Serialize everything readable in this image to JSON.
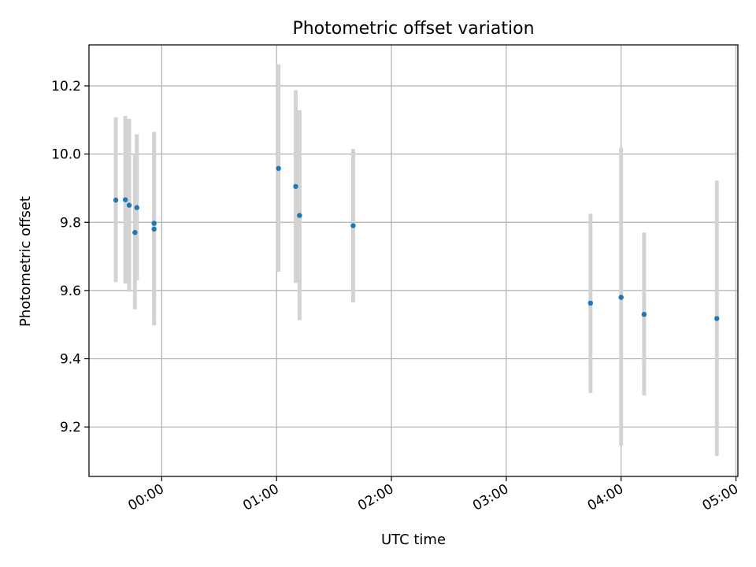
{
  "chart_data": {
    "type": "scatter",
    "title": "Photometric offset variation",
    "xlabel": "UTC time",
    "ylabel": "Photometric offset",
    "x_tick_labels": [
      "00:00",
      "01:00",
      "02:00",
      "03:00",
      "04:00",
      "05:00"
    ],
    "y_tick_labels": [
      "9.2",
      "9.4",
      "9.6",
      "9.8",
      "10.0",
      "10.2"
    ],
    "x_ticks": [
      "00:00",
      "01:00",
      "02:00",
      "03:00",
      "04:00",
      "05:00"
    ],
    "y_ticks": [
      9.2,
      9.4,
      9.6,
      9.8,
      10.0,
      10.2
    ],
    "xlim": [
      "23:22",
      "05:01"
    ],
    "ylim": [
      9.055,
      10.32
    ],
    "grid": true,
    "colors": {
      "point": "#1f77b4",
      "errorbar": "#d3d3d3",
      "grid": "#b0b0b0"
    },
    "points": [
      {
        "x": "23:36",
        "y": 9.865,
        "low": 9.625,
        "high": 10.108
      },
      {
        "x": "23:41",
        "y": 9.866,
        "low": 9.62,
        "high": 10.112
      },
      {
        "x": "23:43",
        "y": 9.85,
        "low": 9.597,
        "high": 10.103
      },
      {
        "x": "23:46",
        "y": 9.77,
        "low": 9.545,
        "high": 10.0
      },
      {
        "x": "23:47",
        "y": 9.843,
        "low": 9.63,
        "high": 10.058
      },
      {
        "x": "23:56",
        "y": 9.797,
        "low": 9.53,
        "high": 10.065
      },
      {
        "x": "23:56",
        "y": 9.78,
        "low": 9.498,
        "high": 10.065
      },
      {
        "x": "01:01",
        "y": 9.958,
        "low": 9.655,
        "high": 10.263
      },
      {
        "x": "01:10",
        "y": 9.905,
        "low": 9.622,
        "high": 10.187
      },
      {
        "x": "01:12",
        "y": 9.82,
        "low": 9.513,
        "high": 10.128
      },
      {
        "x": "01:40",
        "y": 9.79,
        "low": 9.565,
        "high": 10.015
      },
      {
        "x": "03:44",
        "y": 9.563,
        "low": 9.3,
        "high": 9.825
      },
      {
        "x": "04:00",
        "y": 9.58,
        "low": 9.145,
        "high": 10.018
      },
      {
        "x": "04:12",
        "y": 9.53,
        "low": 9.292,
        "high": 9.77
      },
      {
        "x": "04:50",
        "y": 9.518,
        "low": 9.115,
        "high": 9.922
      }
    ]
  }
}
